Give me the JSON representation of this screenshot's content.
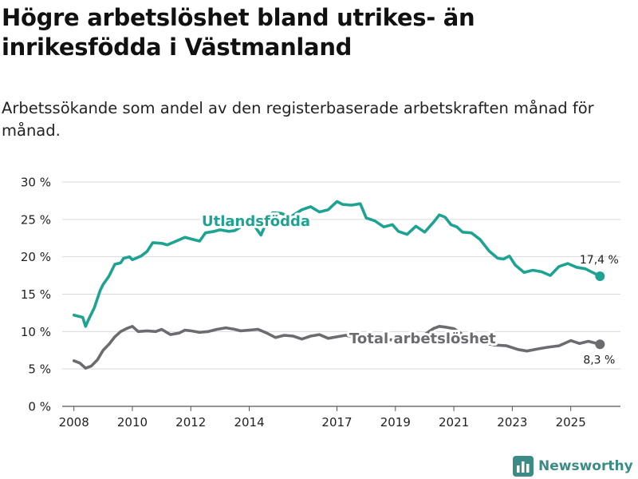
{
  "header": {
    "title": "Högre arbetslöshet bland utrikes- än inrikesfödda i Västmanland",
    "subtitle": "Arbetssökande som andel av den registerbaserade arbetskraften månad för månad."
  },
  "footer": {
    "brand": "Newsworthy"
  },
  "colors": {
    "foreign": "#1ea393",
    "total": "#6d6b70",
    "grid": "#d9d9d9",
    "text": "#222222",
    "brand": "#3a8c84"
  },
  "chart_data": {
    "type": "line",
    "ylim": [
      0,
      30
    ],
    "xlim": [
      2007.6,
      2026.7
    ],
    "y_ticks": [
      0,
      5,
      10,
      15,
      20,
      25,
      30
    ],
    "y_tick_labels": [
      "0 %",
      "5 %",
      "10 %",
      "15 %",
      "20 %",
      "25 %",
      "30 %"
    ],
    "x_ticks": [
      2008,
      2010,
      2012,
      2014,
      2017,
      2019,
      2021,
      2023,
      2025
    ],
    "x_tick_labels": [
      "2008",
      "2010",
      "2012",
      "2014",
      "2017",
      "2019",
      "2021",
      "2023",
      "2025"
    ],
    "series": [
      {
        "name": "Utlandsfödda",
        "label": "Utlandsfödda",
        "end_label": "17,4 %",
        "end_value": 17.4,
        "x": [
          2008.0,
          2008.3,
          2008.4,
          2008.5,
          2008.7,
          2008.9,
          2009.0,
          2009.2,
          2009.4,
          2009.6,
          2009.7,
          2009.9,
          2010.0,
          2010.3,
          2010.5,
          2010.7,
          2011.0,
          2011.2,
          2011.5,
          2011.8,
          2012.0,
          2012.3,
          2012.5,
          2012.8,
          2013.0,
          2013.3,
          2013.5,
          2013.8,
          2014.2,
          2014.4,
          2014.6,
          2014.8,
          2015.1,
          2015.4,
          2015.8,
          2016.1,
          2016.4,
          2016.7,
          2017.0,
          2017.2,
          2017.5,
          2017.8,
          2018.0,
          2018.3,
          2018.6,
          2018.9,
          2019.1,
          2019.4,
          2019.7,
          2020.0,
          2020.3,
          2020.5,
          2020.7,
          2020.9,
          2021.1,
          2021.3,
          2021.6,
          2021.9,
          2022.2,
          2022.5,
          2022.7,
          2022.9,
          2023.1,
          2023.4,
          2023.7,
          2024.0,
          2024.3,
          2024.6,
          2024.9,
          2025.2,
          2025.5,
          2025.75,
          2026.0
        ],
        "values": [
          12.2,
          11.9,
          10.7,
          11.6,
          13.2,
          15.5,
          16.3,
          17.4,
          19.0,
          19.2,
          19.8,
          20.0,
          19.6,
          20.1,
          20.7,
          21.9,
          21.8,
          21.6,
          22.1,
          22.6,
          22.4,
          22.1,
          23.2,
          23.4,
          23.6,
          23.4,
          23.5,
          24.2,
          24.0,
          22.9,
          24.7,
          25.9,
          25.8,
          25.3,
          26.3,
          26.7,
          26.0,
          26.3,
          27.4,
          27.0,
          26.9,
          27.1,
          25.2,
          24.8,
          24.0,
          24.3,
          23.4,
          23.0,
          24.1,
          23.3,
          24.6,
          25.6,
          25.3,
          24.3,
          24.0,
          23.3,
          23.2,
          22.3,
          20.8,
          19.8,
          19.7,
          20.1,
          18.9,
          17.9,
          18.2,
          18.0,
          17.5,
          18.7,
          19.1,
          18.6,
          18.4,
          17.9,
          17.4
        ]
      },
      {
        "name": "Total arbetslöshet",
        "label": "Total arbetslöshet",
        "end_label": "8,3 %",
        "end_value": 8.3,
        "x": [
          2008.0,
          2008.2,
          2008.4,
          2008.6,
          2008.8,
          2009.0,
          2009.2,
          2009.4,
          2009.6,
          2009.8,
          2010.0,
          2010.2,
          2010.5,
          2010.8,
          2011.0,
          2011.3,
          2011.6,
          2011.8,
          2012.0,
          2012.3,
          2012.6,
          2012.9,
          2013.2,
          2013.5,
          2013.7,
          2014.0,
          2014.3,
          2014.6,
          2014.9,
          2015.2,
          2015.5,
          2015.8,
          2016.1,
          2016.4,
          2016.7,
          2017.0,
          2017.3,
          2017.6,
          2018.0,
          2018.4,
          2018.8,
          2019.2,
          2019.6,
          2020.0,
          2020.3,
          2020.5,
          2020.7,
          2021.0,
          2021.3,
          2021.6,
          2022.0,
          2022.4,
          2022.8,
          2023.2,
          2023.5,
          2023.9,
          2024.2,
          2024.6,
          2025.0,
          2025.3,
          2025.6,
          2026.0
        ],
        "values": [
          6.1,
          5.8,
          5.1,
          5.4,
          6.2,
          7.5,
          8.3,
          9.3,
          10.0,
          10.4,
          10.7,
          10.0,
          10.1,
          10.0,
          10.3,
          9.6,
          9.8,
          10.2,
          10.1,
          9.9,
          10.0,
          10.3,
          10.5,
          10.3,
          10.1,
          10.2,
          10.3,
          9.8,
          9.2,
          9.5,
          9.4,
          9.0,
          9.4,
          9.6,
          9.1,
          9.3,
          9.5,
          9.2,
          9.1,
          9.0,
          8.9,
          8.8,
          8.7,
          9.6,
          10.4,
          10.7,
          10.6,
          10.4,
          9.6,
          9.0,
          8.5,
          8.2,
          8.1,
          7.6,
          7.4,
          7.7,
          7.9,
          8.1,
          8.8,
          8.4,
          8.7,
          8.3
        ]
      }
    ]
  }
}
